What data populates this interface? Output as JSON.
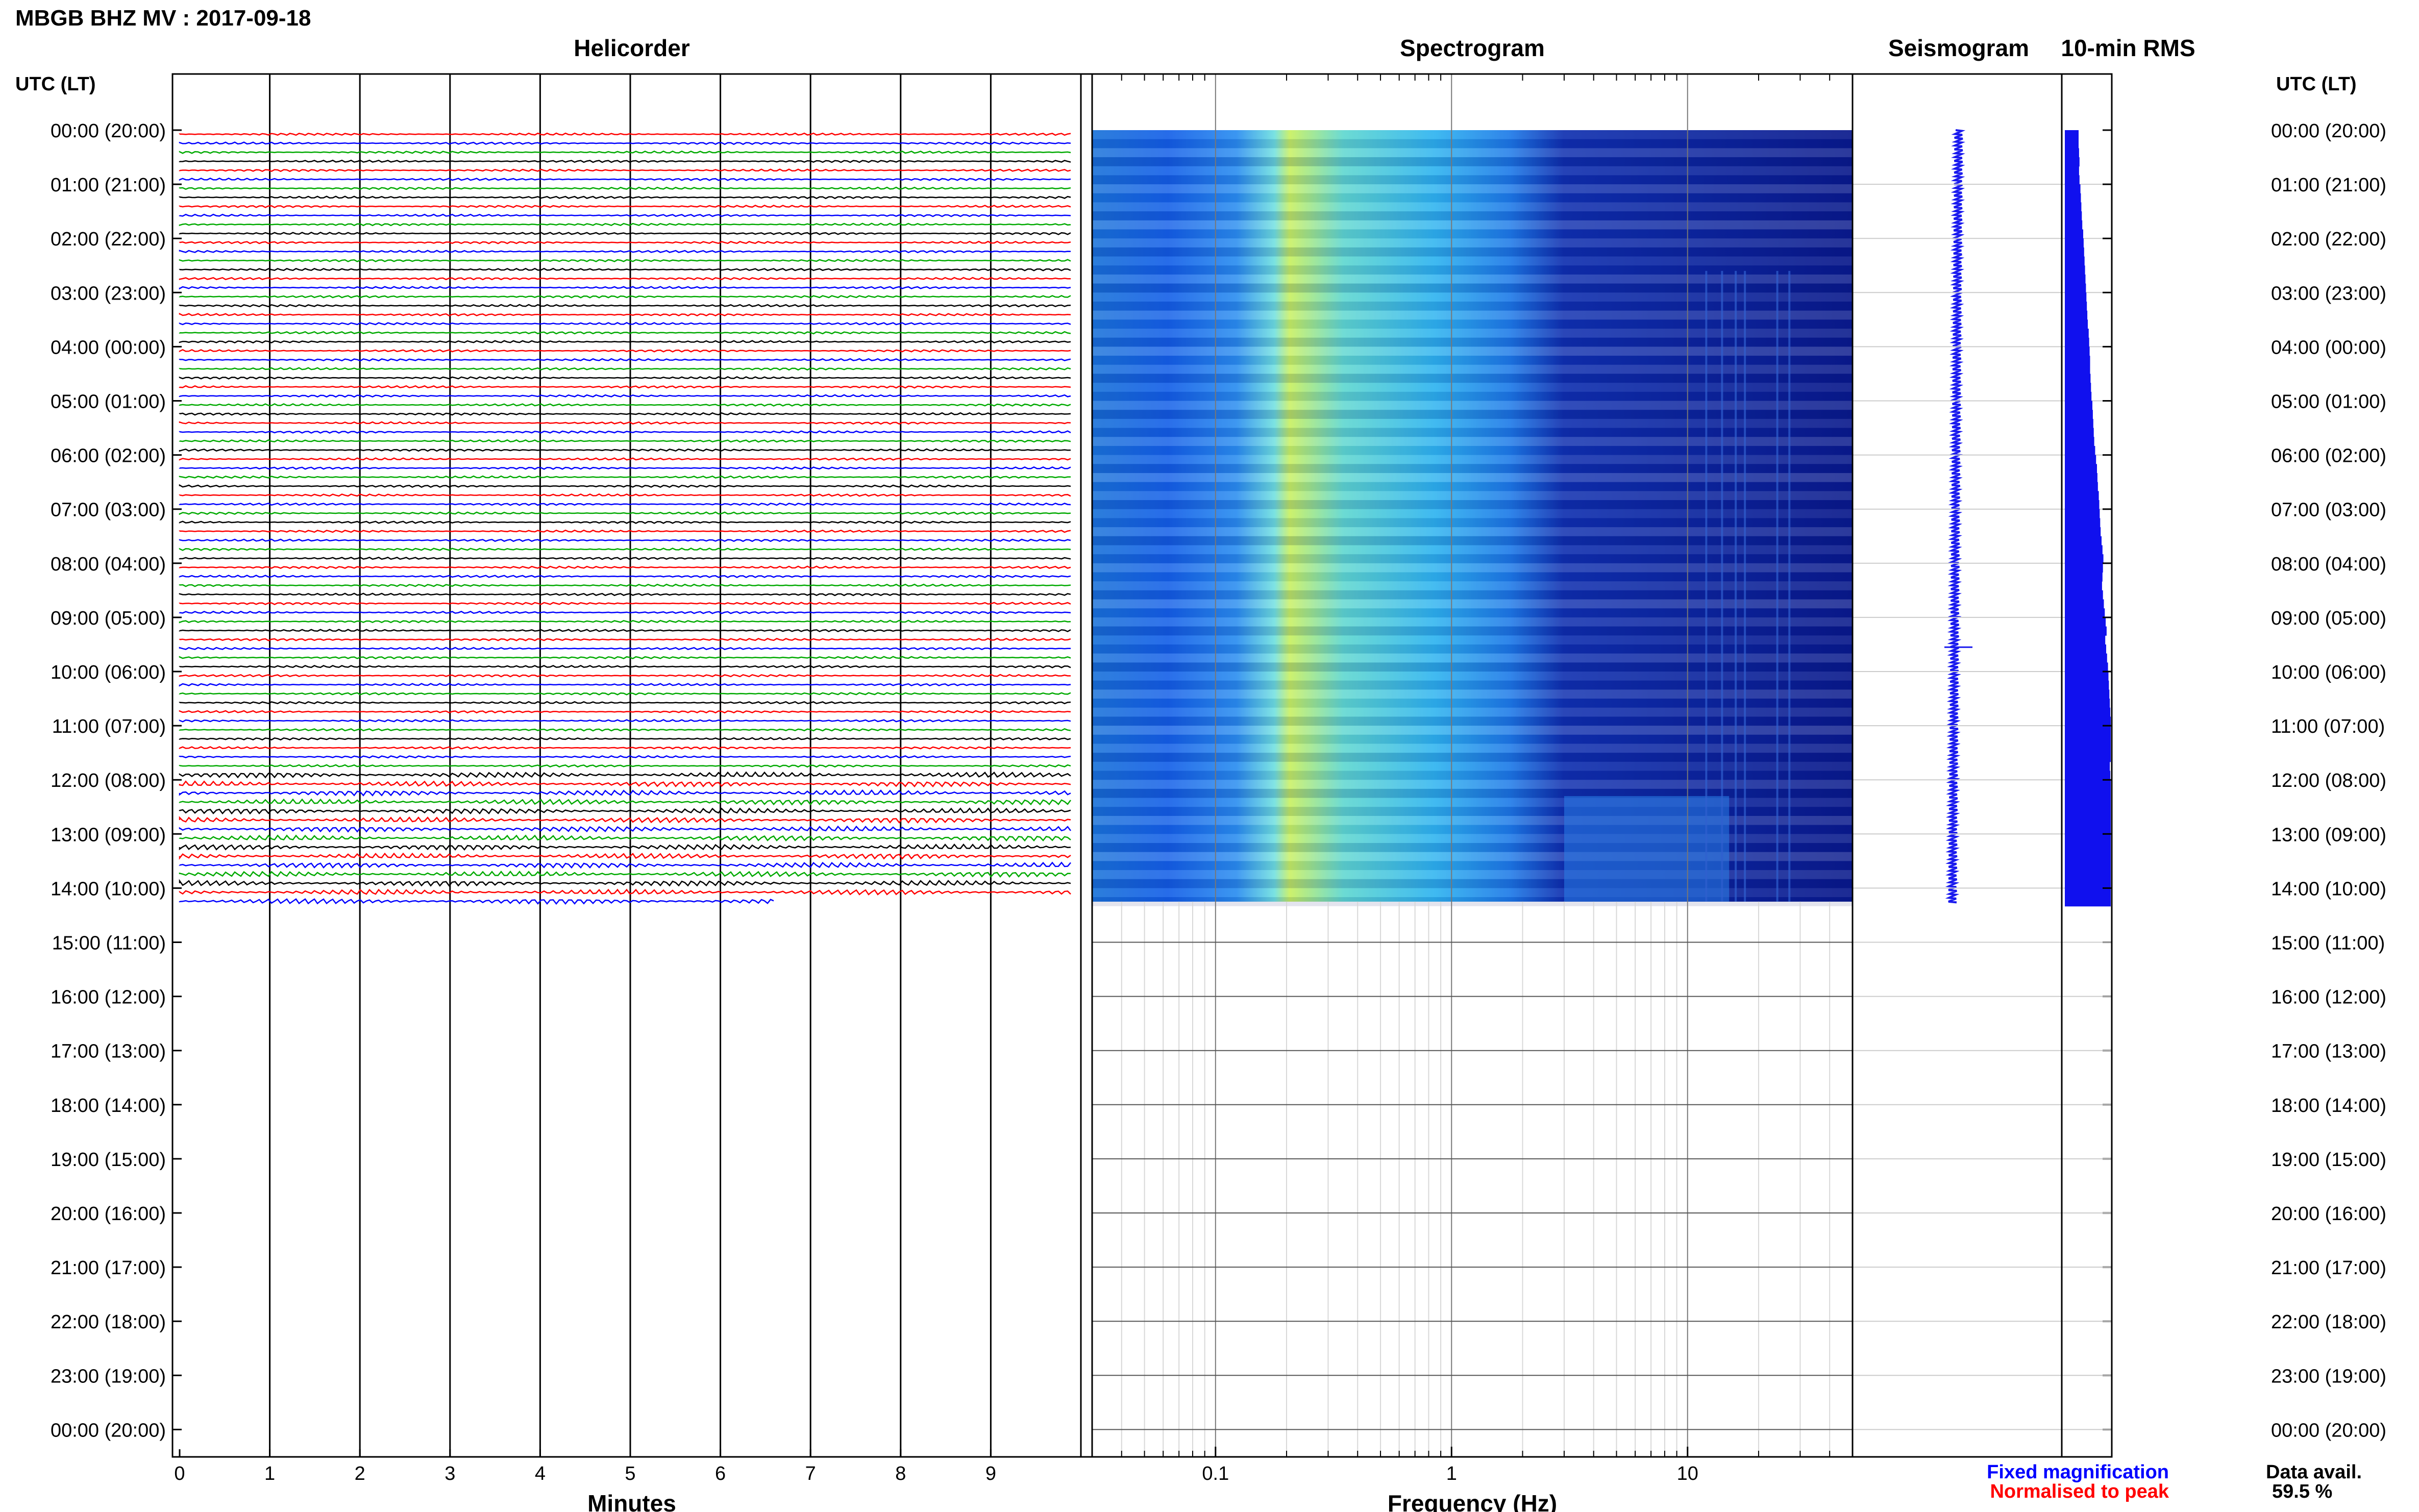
{
  "header": {
    "station_title": "MBGB BHZ MV : 2017-09-18"
  },
  "panels": {
    "helicorder": "Helicorder",
    "spectrogram": "Spectrogram",
    "seismogram": "Seismogram",
    "rms": "10-min RMS"
  },
  "axes": {
    "left_time_header": "UTC (LT)",
    "right_time_header": "UTC (LT)",
    "minutes_label": "Minutes",
    "frequency_label": "Frequency (Hz)"
  },
  "legend": {
    "fixed": "Fixed magnification",
    "normalised": "Normalised to peak",
    "fixed_color": "#0000ff",
    "normalised_color": "#ff0000"
  },
  "data_availability": {
    "label": "Data avail.",
    "value": "59.5 %"
  },
  "chart_data": {
    "type": "heatmap",
    "time_ticks": [
      "00:00 (20:00)",
      "01:00 (21:00)",
      "02:00 (22:00)",
      "03:00 (23:00)",
      "04:00 (00:00)",
      "05:00 (01:00)",
      "06:00 (02:00)",
      "07:00 (03:00)",
      "08:00 (04:00)",
      "09:00 (05:00)",
      "10:00 (06:00)",
      "11:00 (07:00)",
      "12:00 (08:00)",
      "13:00 (09:00)",
      "14:00 (10:00)",
      "15:00 (11:00)",
      "16:00 (12:00)",
      "17:00 (13:00)",
      "18:00 (14:00)",
      "19:00 (15:00)",
      "20:00 (16:00)",
      "21:00 (17:00)",
      "22:00 (18:00)",
      "23:00 (19:00)",
      "00:00 (20:00)"
    ],
    "minute_ticks": [
      "0",
      "1",
      "2",
      "3",
      "4",
      "5",
      "6",
      "7",
      "8",
      "9"
    ],
    "frequency_ticks": [
      "0.1",
      "1",
      "10"
    ],
    "frequency_range": [
      0.03,
      50
    ],
    "data_end_hours": 14.25,
    "trace_colors": [
      "#000000",
      "#ff0000",
      "#0000ff",
      "#00aa00"
    ],
    "rms_10min": [
      0.3,
      0.3,
      0.31,
      0.32,
      0.31,
      0.32,
      0.34,
      0.35,
      0.36,
      0.37,
      0.38,
      0.4,
      0.41,
      0.42,
      0.43,
      0.44,
      0.45,
      0.46,
      0.47,
      0.48,
      0.49,
      0.5,
      0.52,
      0.53,
      0.54,
      0.55,
      0.55,
      0.56,
      0.57,
      0.58,
      0.6,
      0.61,
      0.62,
      0.63,
      0.64,
      0.66,
      0.68,
      0.7,
      0.71,
      0.72,
      0.74,
      0.75,
      0.76,
      0.77,
      0.78,
      0.8,
      0.82,
      0.84,
      0.83,
      0.82,
      0.81,
      0.83,
      0.85,
      0.87,
      0.89,
      0.91,
      0.88,
      0.9,
      0.92,
      0.94,
      0.95,
      0.96,
      0.97,
      0.98,
      0.99,
      1.0,
      1.0,
      1.0,
      1.0,
      1.0,
      0.98,
      0.99,
      1.0,
      1.0,
      1.0,
      1.0,
      1.0,
      1.0,
      1.0,
      1.0,
      1.0,
      1.0,
      1.0,
      1.0,
      1.0,
      1.0
    ]
  }
}
